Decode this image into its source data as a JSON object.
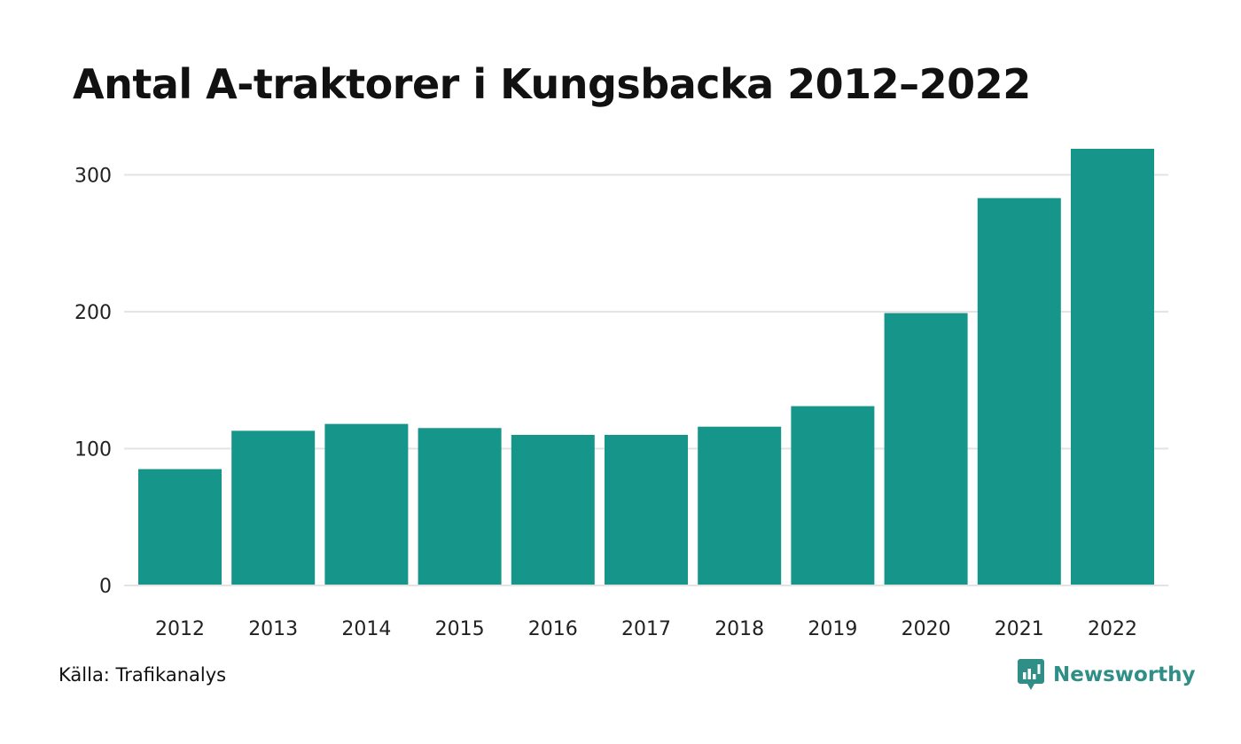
{
  "title": "Antal A-traktorer i Kungsbacka 2012–2022",
  "source": "Källa: Trafikanalys",
  "brand": {
    "name": "Newsworthy",
    "icon": "newsworthy-logo-icon",
    "color": "#2f8f86"
  },
  "chart_data": {
    "type": "bar",
    "title": "Antal A-traktorer i Kungsbacka 2012–2022",
    "xlabel": "",
    "ylabel": "",
    "categories": [
      "2012",
      "2013",
      "2014",
      "2015",
      "2016",
      "2017",
      "2018",
      "2019",
      "2020",
      "2021",
      "2022"
    ],
    "values": [
      85,
      113,
      118,
      115,
      110,
      110,
      116,
      131,
      199,
      283,
      319
    ],
    "ylim": [
      0,
      319
    ],
    "yticks": [
      0,
      100,
      200,
      300
    ],
    "grid": true,
    "bar_color": "#16968a",
    "grid_color": "#e3e3e3",
    "legend": "none"
  }
}
